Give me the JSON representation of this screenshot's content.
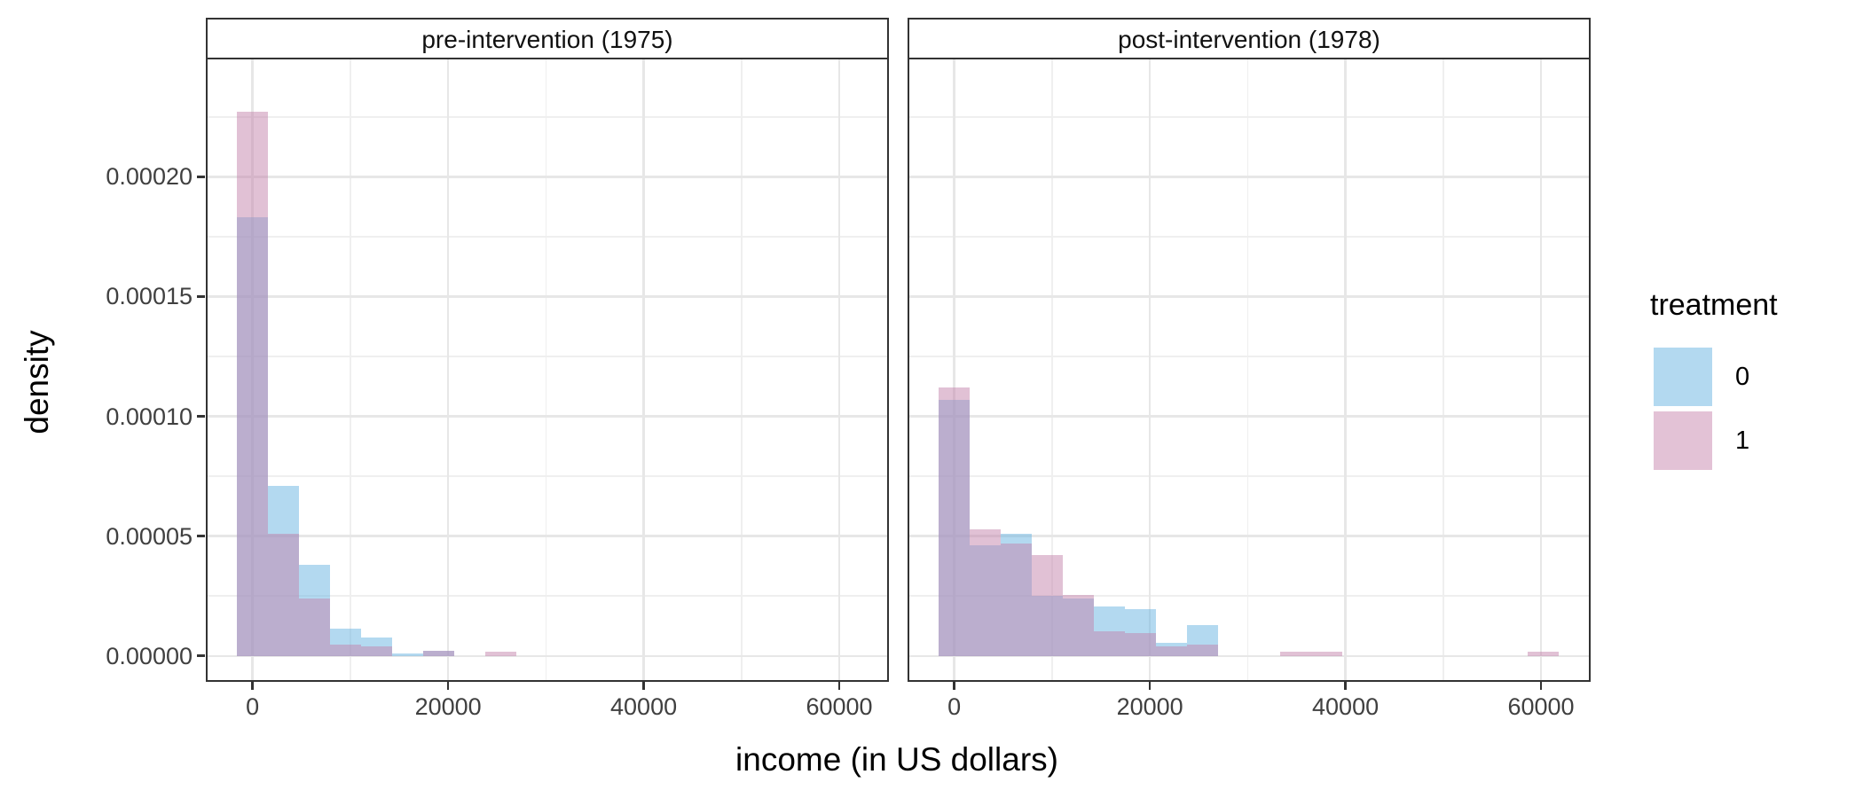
{
  "chart_data": {
    "type": "histogram",
    "description": "Overlaid density histograms of income by treatment group, faceted by period",
    "x_axis": {
      "label": "income (in US dollars)",
      "tick_values": [
        0,
        20000,
        40000,
        60000
      ],
      "tick_labels": [
        "0",
        "20000",
        "40000",
        "60000"
      ],
      "minor_gridline_values": [
        10000,
        30000,
        50000
      ],
      "range": [
        -4600,
        64900
      ]
    },
    "y_axis": {
      "label": "density",
      "tick_values": [
        0.0002,
        0.00015,
        0.0001,
        5e-05,
        0
      ],
      "tick_labels": [
        "0.00020",
        "0.00015",
        "0.00010",
        "0.00005",
        "0.00000"
      ],
      "minor_gridline_values": [
        0.000225,
        0.000175,
        0.000125,
        7.5e-05,
        2.5e-05
      ],
      "range": [
        -1.01e-05,
        0.000249
      ]
    },
    "bin_width": 3172,
    "bin_centers": [
      0,
      3172,
      6344,
      9516,
      12688,
      15860,
      19032,
      22204,
      25376,
      28548,
      31720,
      34892,
      38064,
      41236,
      44408,
      47580,
      50752,
      53924,
      57096,
      60268
    ],
    "facets": [
      {
        "label": "pre-intervention (1975)",
        "series": [
          {
            "name": "0",
            "values": [
              0.000183,
              7.1e-05,
              3.8e-05,
              1.15e-05,
              7.6e-06,
              1e-06,
              2e-06,
              0,
              0,
              0,
              0,
              0,
              0,
              0,
              0,
              0,
              0,
              0,
              0,
              0
            ]
          },
          {
            "name": "1",
            "values": [
              0.000227,
              5.1e-05,
              2.4e-05,
              4.7e-06,
              4e-06,
              0,
              2e-06,
              0,
              1.8e-06,
              0,
              0,
              0,
              0,
              0,
              0,
              0,
              0,
              0,
              0,
              0
            ]
          }
        ]
      },
      {
        "label": "post-intervention (1978)",
        "series": [
          {
            "name": "0",
            "values": [
              0.000107,
              4.6e-05,
              5.1e-05,
              2.5e-05,
              2.39e-05,
              2.07e-05,
              1.95e-05,
              5.3e-06,
              1.27e-05,
              0,
              0,
              0,
              0,
              0,
              0,
              0,
              0,
              0,
              0,
              0
            ]
          },
          {
            "name": "1",
            "values": [
              0.000112,
              5.3e-05,
              4.7e-05,
              4.2e-05,
              2.53e-05,
              1.03e-05,
              9.6e-06,
              4.1e-06,
              4.7e-06,
              0,
              0,
              1.6e-06,
              1.6e-06,
              0,
              0,
              0,
              0,
              0,
              0,
              1.6e-06
            ]
          }
        ]
      }
    ],
    "legend": {
      "title": "treatment",
      "entries": [
        {
          "label": "0",
          "swatch_color": "#b3d9f0"
        },
        {
          "label": "1",
          "swatch_color": "#e3c2d6"
        }
      ]
    },
    "colors": {
      "treatment_0_fill": "#67b3e1",
      "treatment_1_fill": "#c383ab",
      "fill_alpha": 0.5,
      "overlap_appearance": "#bbaecd",
      "grid_major": "#e7e7e7",
      "grid_minor": "#efefef",
      "panel_border": "#333333",
      "tick_text": "#404040"
    },
    "layout_hints": {
      "grid": true,
      "legend_position": "right",
      "facets_share_y": true
    }
  }
}
